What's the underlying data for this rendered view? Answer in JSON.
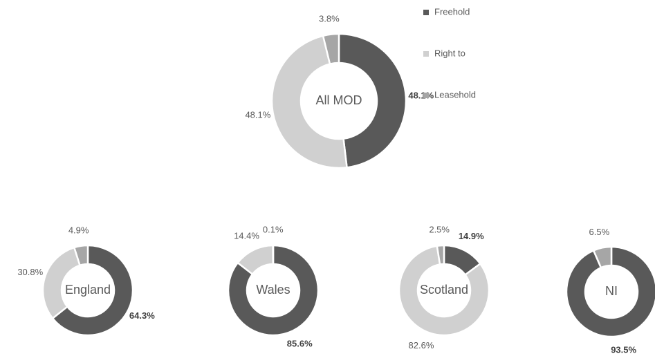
{
  "chart_data": [
    {
      "type": "donut",
      "title": "All MOD",
      "categories": [
        "Freehold",
        "Right to",
        "Leasehold"
      ],
      "colors": [
        "#595959",
        "#d0d0d0",
        "#a6a6a6"
      ],
      "legend": "right",
      "values": [
        48.1,
        48.1,
        3.8
      ],
      "value_labels": [
        "48.1%",
        "48.1%",
        "3.8%"
      ]
    },
    {
      "type": "donut",
      "title": "England",
      "values": [
        64.3,
        30.8,
        4.9
      ],
      "value_labels": [
        "64.3%",
        "30.8%",
        "4.9%"
      ]
    },
    {
      "type": "donut",
      "title": "Wales",
      "values": [
        85.6,
        14.4,
        0.1
      ],
      "value_labels": [
        "85.6%",
        "14.4%",
        "0.1%"
      ]
    },
    {
      "type": "donut",
      "title": "Scotland",
      "values": [
        14.9,
        82.6,
        2.5
      ],
      "value_labels": [
        "14.9%",
        "82.6%",
        "2.5%"
      ]
    },
    {
      "type": "donut",
      "title": "NI",
      "values": [
        93.5,
        0,
        6.5
      ],
      "value_labels": [
        "93.5%",
        null,
        "6.5%"
      ]
    }
  ]
}
